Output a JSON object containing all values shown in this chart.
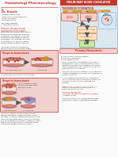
{
  "bg_color": "#f5f5f5",
  "white": "#ffffff",
  "header_red": "#c0392b",
  "light_pink": "#f2d0ce",
  "medium_pink": "#e8b0ac",
  "vessel_wall": "#d4887e",
  "vessel_lumen": "#f5e0dc",
  "rbc_color": "#c0392b",
  "platelet_yellow": "#d4a020",
  "platelet_green": "#70a040",
  "fibrin_blue": "#7090c0",
  "text_dark": "#222222",
  "text_red": "#c0392b",
  "text_blue": "#2040a0",
  "cascade_bg": "#dce8f0",
  "cascade_border": "#9ab0c8",
  "arrow_gray": "#555555",
  "box_orange": "#e07830",
  "box_green": "#50a050",
  "box_blue": "#4080b0",
  "header_bg": "#c0392b",
  "subheader_pink": "#f5d0cc",
  "page_bg": "#fafafa",
  "left_top_title": "Hematologi Pharmacology",
  "right_header": "PRELIMINARY BLOOD COAGULATION",
  "cascade_title": "THROMBUS FORMATION",
  "primary_hemo": "Primary Hemostasis",
  "steps1_title": "Steps to hemostasis",
  "steps2_title": "Steps to hemostasis"
}
